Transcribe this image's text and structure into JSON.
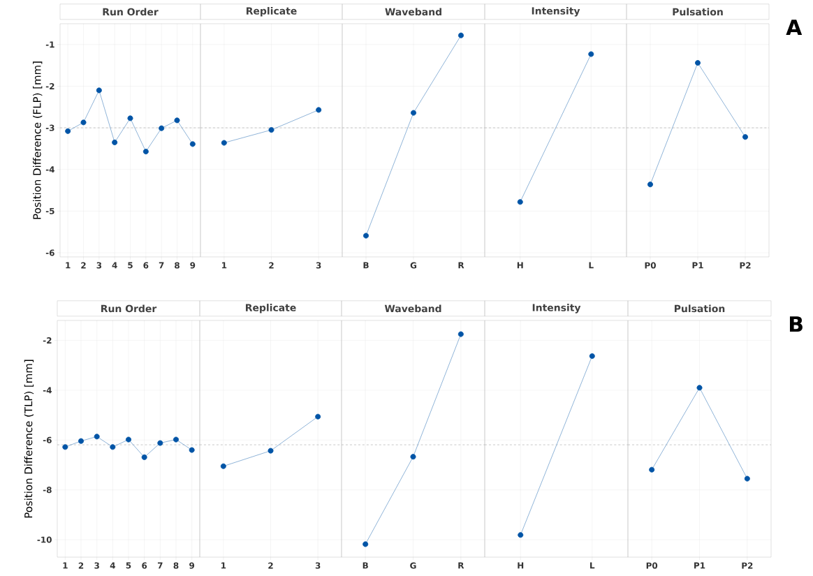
{
  "chart_data": [
    {
      "type": "line",
      "title": "Run Order",
      "ylabel": "Position Difference (FLP) [mm]",
      "categories": [
        "1",
        "2",
        "3",
        "4",
        "5",
        "6",
        "7",
        "8",
        "9"
      ],
      "series": [
        {
          "color": "#0054a6",
          "values": [
            -3.08,
            -2.87,
            -2.1,
            -3.35,
            -2.77,
            -3.57,
            -3.01,
            -2.82,
            -3.39
          ]
        }
      ],
      "ylim": [
        -6.1,
        -0.5
      ],
      "yticks": [
        -1,
        -2,
        -3,
        -4,
        -5,
        -6
      ],
      "grid": true,
      "marker": "circle",
      "line_style": "solid",
      "ref_lines": [
        {
          "axis": "y",
          "value": -3.0,
          "color": "#b0b0b0",
          "line_style": "dashed"
        }
      ]
    },
    {
      "type": "line",
      "title": "Replicate",
      "categories": [
        "1",
        "2",
        "3"
      ],
      "series": [
        {
          "color": "#0054a6",
          "values": [
            -3.36,
            -3.05,
            -2.57
          ]
        }
      ],
      "ylim": [
        -6.1,
        -0.5
      ],
      "yticks": [
        -1,
        -2,
        -3,
        -4,
        -5,
        -6
      ],
      "tick_labels": "x",
      "grid": true,
      "marker": "circle",
      "line_style": "solid",
      "ref_lines": [
        {
          "axis": "y",
          "value": -3.0,
          "color": "#b0b0b0",
          "line_style": "dashed"
        }
      ]
    },
    {
      "type": "line",
      "title": "Waveband",
      "categories": [
        "B",
        "G",
        "R"
      ],
      "series": [
        {
          "color": "#0054a6",
          "values": [
            -5.59,
            -2.64,
            -0.78
          ]
        }
      ],
      "ylim": [
        -6.1,
        -0.5
      ],
      "yticks": [
        -1,
        -2,
        -3,
        -4,
        -5,
        -6
      ],
      "tick_labels": "x",
      "grid": true,
      "marker": "circle",
      "line_style": "solid",
      "ref_lines": [
        {
          "axis": "y",
          "value": -3.0,
          "color": "#b0b0b0",
          "line_style": "dashed"
        }
      ]
    },
    {
      "type": "line",
      "title": "Intensity",
      "categories": [
        "H",
        "L"
      ],
      "series": [
        {
          "color": "#0054a6",
          "values": [
            -4.78,
            -1.23
          ]
        }
      ],
      "ylim": [
        -6.1,
        -0.5
      ],
      "yticks": [
        -1,
        -2,
        -3,
        -4,
        -5,
        -6
      ],
      "tick_labels": "x",
      "grid": true,
      "marker": "circle",
      "line_style": "solid",
      "ref_lines": [
        {
          "axis": "y",
          "value": -3.0,
          "color": "#b0b0b0",
          "line_style": "dashed"
        }
      ]
    },
    {
      "type": "line",
      "title": "Pulsation",
      "categories": [
        "P0",
        "P1",
        "P2"
      ],
      "series": [
        {
          "color": "#0054a6",
          "values": [
            -4.36,
            -1.44,
            -3.22
          ]
        }
      ],
      "ylim": [
        -6.1,
        -0.5
      ],
      "yticks": [
        -1,
        -2,
        -3,
        -4,
        -5,
        -6
      ],
      "tick_labels": "x",
      "grid": true,
      "marker": "circle",
      "line_style": "solid",
      "ref_lines": [
        {
          "axis": "y",
          "value": -3.0,
          "color": "#b0b0b0",
          "line_style": "dashed"
        }
      ],
      "annotations": [
        "A"
      ]
    },
    {
      "type": "line",
      "title": "Run Order",
      "ylabel": "Position Difference (TLP) [mm]",
      "categories": [
        "1",
        "2",
        "3",
        "4",
        "5",
        "6",
        "7",
        "8",
        "9"
      ],
      "series": [
        {
          "color": "#0054a6",
          "values": [
            -6.28,
            -6.04,
            -5.86,
            -6.28,
            -5.98,
            -6.69,
            -6.12,
            -5.98,
            -6.4
          ]
        }
      ],
      "ylim": [
        -10.7,
        -1.2
      ],
      "yticks": [
        -2,
        -4,
        -6,
        -8,
        -10
      ],
      "grid": true,
      "marker": "circle",
      "line_style": "solid",
      "ref_lines": [
        {
          "axis": "y",
          "value": -6.19,
          "color": "#b0b0b0",
          "line_style": "dashed"
        }
      ]
    },
    {
      "type": "line",
      "title": "Replicate",
      "categories": [
        "1",
        "2",
        "3"
      ],
      "series": [
        {
          "color": "#0054a6",
          "values": [
            -7.05,
            -6.43,
            -5.06
          ]
        }
      ],
      "ylim": [
        -10.7,
        -1.2
      ],
      "yticks": [
        -2,
        -4,
        -6,
        -8,
        -10
      ],
      "tick_labels": "x",
      "grid": true,
      "marker": "circle",
      "line_style": "solid",
      "ref_lines": [
        {
          "axis": "y",
          "value": -6.19,
          "color": "#b0b0b0",
          "line_style": "dashed"
        }
      ]
    },
    {
      "type": "line",
      "title": "Waveband",
      "categories": [
        "B",
        "G",
        "R"
      ],
      "series": [
        {
          "color": "#0054a6",
          "values": [
            -10.18,
            -6.67,
            -1.75
          ]
        }
      ],
      "ylim": [
        -10.7,
        -1.2
      ],
      "yticks": [
        -2,
        -4,
        -6,
        -8,
        -10
      ],
      "tick_labels": "x",
      "grid": true,
      "marker": "circle",
      "line_style": "solid",
      "ref_lines": [
        {
          "axis": "y",
          "value": -6.19,
          "color": "#b0b0b0",
          "line_style": "dashed"
        }
      ]
    },
    {
      "type": "line",
      "title": "Intensity",
      "categories": [
        "H",
        "L"
      ],
      "series": [
        {
          "color": "#0054a6",
          "values": [
            -9.81,
            -2.63
          ]
        }
      ],
      "ylim": [
        -10.7,
        -1.2
      ],
      "yticks": [
        -2,
        -4,
        -6,
        -8,
        -10
      ],
      "tick_labels": "x",
      "grid": true,
      "marker": "circle",
      "line_style": "solid",
      "ref_lines": [
        {
          "axis": "y",
          "value": -6.19,
          "color": "#b0b0b0",
          "line_style": "dashed"
        }
      ]
    },
    {
      "type": "line",
      "title": "Pulsation",
      "categories": [
        "P0",
        "P1",
        "P2"
      ],
      "series": [
        {
          "color": "#0054a6",
          "values": [
            -7.19,
            -3.9,
            -7.55
          ]
        }
      ],
      "ylim": [
        -10.7,
        -1.2
      ],
      "yticks": [
        -2,
        -4,
        -6,
        -8,
        -10
      ],
      "tick_labels": "x",
      "grid": true,
      "marker": "circle",
      "line_style": "solid",
      "ref_lines": [
        {
          "axis": "y",
          "value": -6.19,
          "color": "#b0b0b0",
          "line_style": "dashed"
        }
      ],
      "annotations": [
        "B"
      ]
    }
  ]
}
